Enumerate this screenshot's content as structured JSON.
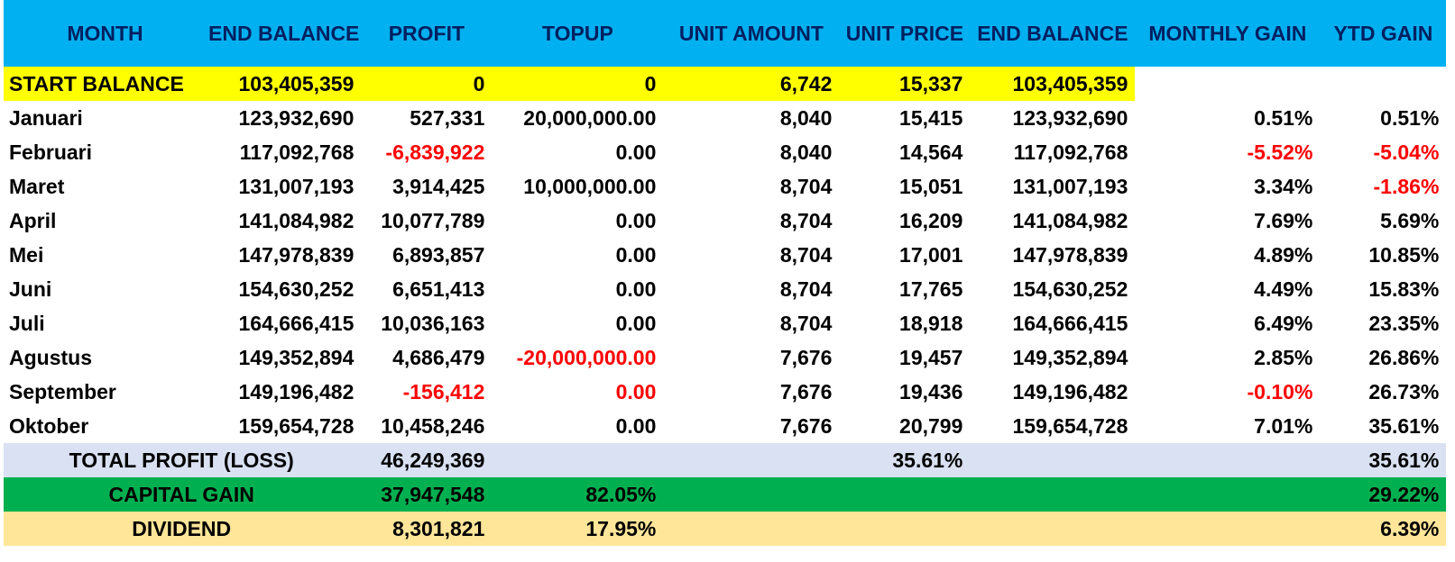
{
  "colors": {
    "header_bg": "#00b0f0",
    "header_text": "#002060",
    "start_balance_bg": "#ffff00",
    "total_bg": "#d9e1f2",
    "capital_gain_bg": "#00b050",
    "dividend_bg": "#ffe699",
    "negative_text": "#ff0000"
  },
  "headers": [
    "MONTH",
    "END BALANCE",
    "PROFIT",
    "TOPUP",
    "UNIT AMOUNT",
    "UNIT PRICE",
    "END BALANCE",
    "MONTHLY GAIN",
    "YTD GAIN"
  ],
  "start": {
    "label": "START BALANCE",
    "end_balance": "103,405,359",
    "profit": "0",
    "topup": "0",
    "unit_amount": "6,742",
    "unit_price": "15,337",
    "end_balance2": "103,405,359"
  },
  "rows": [
    {
      "month": "Januari",
      "end_balance": "123,932,690",
      "profit": "527,331",
      "topup": "20,000,000.00",
      "unit_amount": "8,040",
      "unit_price": "15,415",
      "end_balance2": "123,932,690",
      "monthly_gain": "0.51%",
      "ytd_gain": "0.51%"
    },
    {
      "month": "Februari",
      "end_balance": "117,092,768",
      "profit": "-6,839,922",
      "topup": "0.00",
      "unit_amount": "8,040",
      "unit_price": "14,564",
      "end_balance2": "117,092,768",
      "monthly_gain": "-5.52%",
      "ytd_gain": "-5.04%"
    },
    {
      "month": "Maret",
      "end_balance": "131,007,193",
      "profit": "3,914,425",
      "topup": "10,000,000.00",
      "unit_amount": "8,704",
      "unit_price": "15,051",
      "end_balance2": "131,007,193",
      "monthly_gain": "3.34%",
      "ytd_gain": "-1.86%"
    },
    {
      "month": "April",
      "end_balance": "141,084,982",
      "profit": "10,077,789",
      "topup": "0.00",
      "unit_amount": "8,704",
      "unit_price": "16,209",
      "end_balance2": "141,084,982",
      "monthly_gain": "7.69%",
      "ytd_gain": "5.69%"
    },
    {
      "month": "Mei",
      "end_balance": "147,978,839",
      "profit": "6,893,857",
      "topup": "0.00",
      "unit_amount": "8,704",
      "unit_price": "17,001",
      "end_balance2": "147,978,839",
      "monthly_gain": "4.89%",
      "ytd_gain": "10.85%"
    },
    {
      "month": "Juni",
      "end_balance": "154,630,252",
      "profit": "6,651,413",
      "topup": "0.00",
      "unit_amount": "8,704",
      "unit_price": "17,765",
      "end_balance2": "154,630,252",
      "monthly_gain": "4.49%",
      "ytd_gain": "15.83%"
    },
    {
      "month": "Juli",
      "end_balance": "164,666,415",
      "profit": "10,036,163",
      "topup": "0.00",
      "unit_amount": "8,704",
      "unit_price": "18,918",
      "end_balance2": "164,666,415",
      "monthly_gain": "6.49%",
      "ytd_gain": "23.35%"
    },
    {
      "month": "Agustus",
      "end_balance": "149,352,894",
      "profit": "4,686,479",
      "topup": "-20,000,000.00",
      "unit_amount": "7,676",
      "unit_price": "19,457",
      "end_balance2": "149,352,894",
      "monthly_gain": "2.85%",
      "ytd_gain": "26.86%"
    },
    {
      "month": "September",
      "end_balance": "149,196,482",
      "profit": "-156,412",
      "topup": "0.00",
      "unit_amount": "7,676",
      "unit_price": "19,436",
      "end_balance2": "149,196,482",
      "monthly_gain": "-0.10%",
      "ytd_gain": "26.73%"
    },
    {
      "month": "Oktober",
      "end_balance": "159,654,728",
      "profit": "10,458,246",
      "topup": "0.00",
      "unit_amount": "7,676",
      "unit_price": "20,799",
      "end_balance2": "159,654,728",
      "monthly_gain": "7.01%",
      "ytd_gain": "35.61%"
    }
  ],
  "total": {
    "label": "TOTAL PROFIT (LOSS)",
    "profit": "46,249,369",
    "unit_price": "35.61%",
    "ytd_gain": "35.61%"
  },
  "capital_gain": {
    "label": "CAPITAL GAIN",
    "profit": "37,947,548",
    "topup": "82.05%",
    "ytd_gain": "29.22%"
  },
  "dividend": {
    "label": "DIVIDEND",
    "profit": "8,301,821",
    "topup": "17.95%",
    "ytd_gain": "6.39%"
  }
}
